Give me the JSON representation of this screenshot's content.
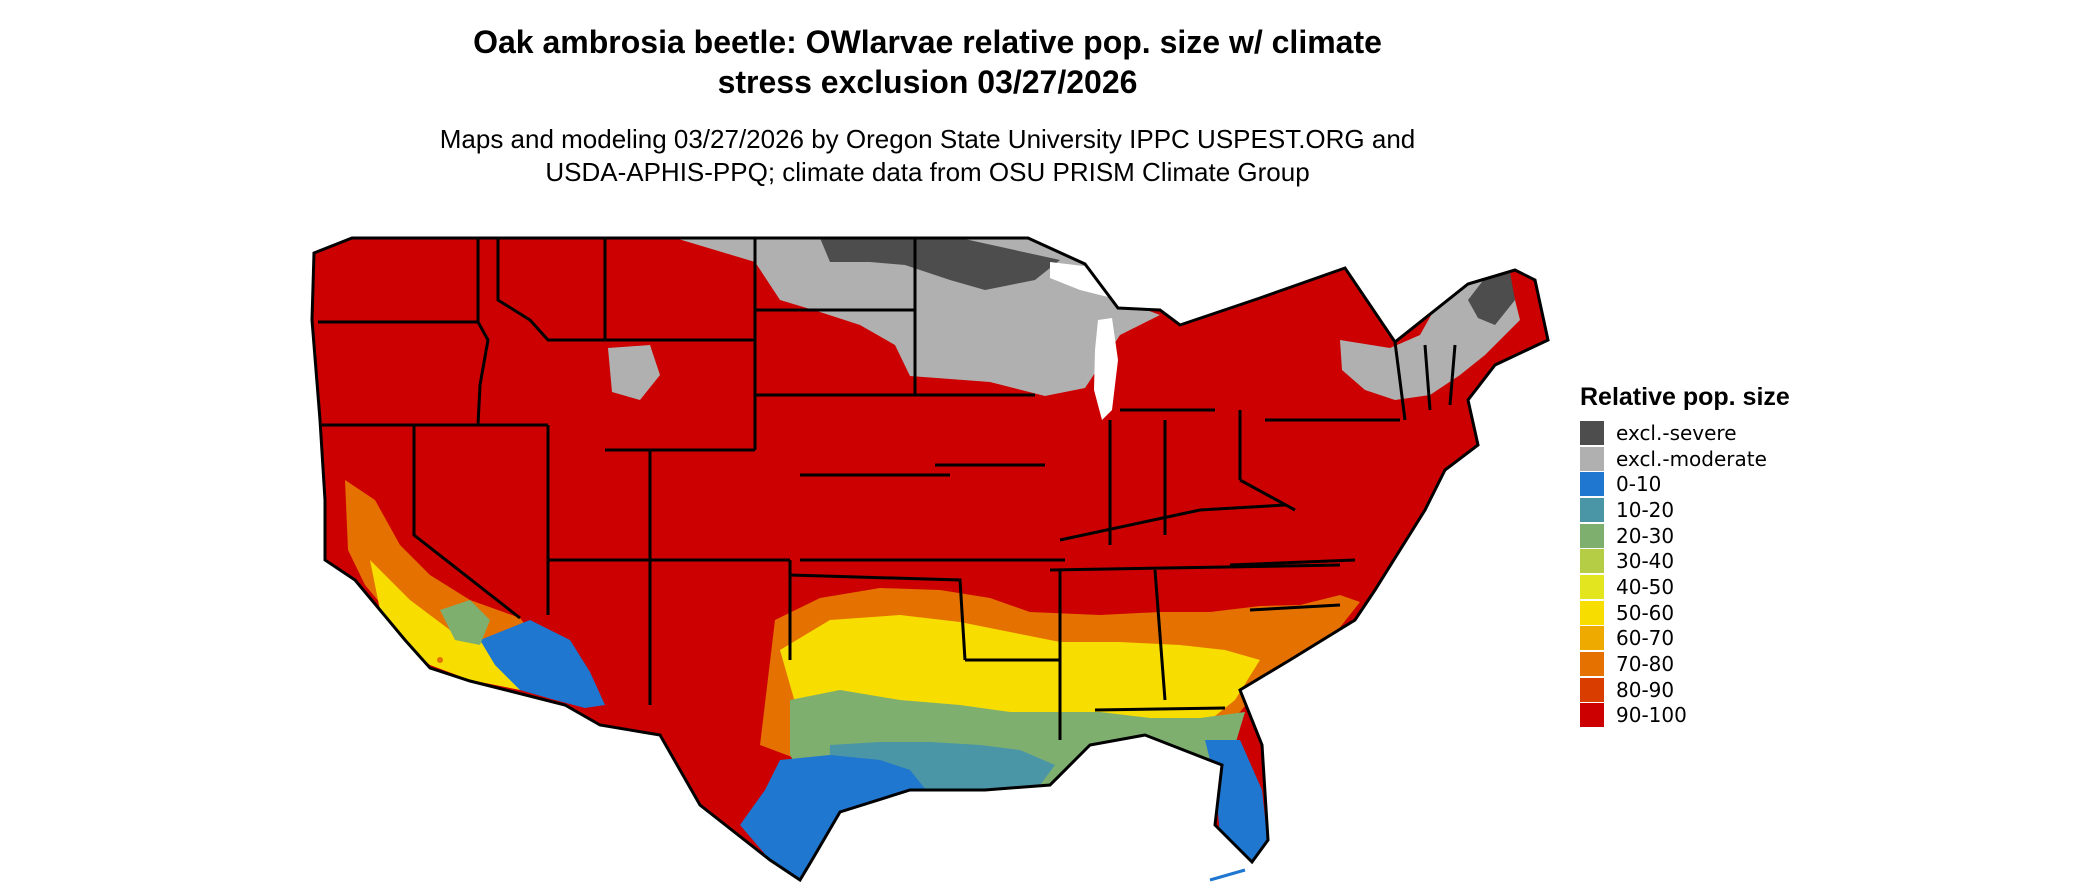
{
  "title": {
    "line1": "Oak ambrosia beetle: OWlarvae relative pop. size w/ climate",
    "line2": "stress exclusion 03/27/2026"
  },
  "subtitle": {
    "line1": "Maps and modeling 03/27/2026 by Oregon State University IPPC USPEST.ORG and",
    "line2": "USDA-APHIS-PPQ; climate data from OSU PRISM Climate Group"
  },
  "legend": {
    "title": "Relative pop. size",
    "items": [
      {
        "label": "excl.-severe",
        "color": "#4d4d4d"
      },
      {
        "label": "excl.-moderate",
        "color": "#b0b0b0"
      },
      {
        "label": "0-10",
        "color": "#1f77d0"
      },
      {
        "label": "10-20",
        "color": "#4a95a6"
      },
      {
        "label": "20-30",
        "color": "#7faf6f"
      },
      {
        "label": "30-40",
        "color": "#b5cc45"
      },
      {
        "label": "40-50",
        "color": "#e3e61f"
      },
      {
        "label": "50-60",
        "color": "#f7dd00"
      },
      {
        "label": "60-70",
        "color": "#efaa00"
      },
      {
        "label": "70-80",
        "color": "#e57100"
      },
      {
        "label": "80-90",
        "color": "#d93d00"
      },
      {
        "label": "90-100",
        "color": "#cc0000"
      }
    ]
  }
}
